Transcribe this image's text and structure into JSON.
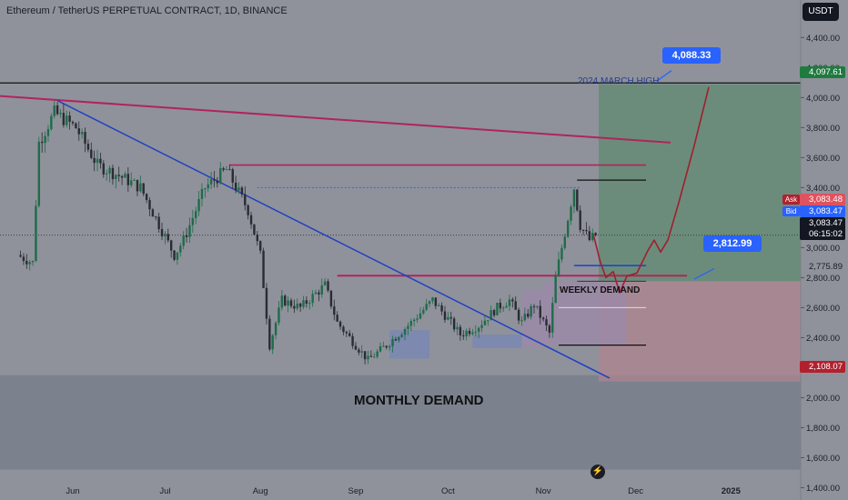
{
  "header": {
    "symbol_title": "Ethereum / TetherUS PERPETUAL CONTRACT, 1D, BINANCE",
    "currency": "USDT"
  },
  "price_tags": {
    "march_high": "4,097.61",
    "ask_label": "Ask",
    "ask": "3,083.48",
    "bid_label": "Bid",
    "bid": "3,083.47",
    "last": "3,083.47",
    "countdown": "06:15:02",
    "level_mid": "2,775.89",
    "stop": "2,108.07"
  },
  "callouts": {
    "target": "4,088.33",
    "level": "2,812.99"
  },
  "annotations": {
    "march_high": "2024 MARCH HIGH",
    "weekly_demand": "WEEKLY DEMAND",
    "monthly_demand": "MONTHLY DEMAND"
  },
  "colors": {
    "background": "#8f929b",
    "up_candle": "#1f6b4a",
    "down_candle": "#2a2c33",
    "trendline_blue": "#1f3fc4",
    "trendline_magenta": "#b0245c",
    "target_zone": "#5f8a70",
    "stop_zone": "#b0858f",
    "demand_zone": "#6f7685",
    "tag_green": "#1f7a3f",
    "tag_red": "#b2202e",
    "tag_blue": "#2962ff"
  },
  "chart_data": {
    "type": "candlestick",
    "title": "Ethereum / TetherUS PERPETUAL CONTRACT, 1D, BINANCE",
    "x_tick_labels": [
      "Jun",
      "Jul",
      "Aug",
      "Sep",
      "Oct",
      "Nov",
      "Dec",
      "2025"
    ],
    "y_tick_labels": [
      "4,400.00",
      "4,200.00",
      "4,000.00",
      "3,800.00",
      "3,600.00",
      "3,400.00",
      "3,200.00",
      "3,000.00",
      "2,800.00",
      "2,600.00",
      "2,400.00",
      "2,200.00",
      "2,000.00",
      "1,800.00",
      "1,600.00",
      "1,400.00"
    ],
    "y_ticks": [
      4400,
      4200,
      4000,
      3800,
      3600,
      3400,
      3200,
      3000,
      2800,
      2600,
      2400,
      2200,
      2000,
      1800,
      1600,
      1400
    ],
    "ylim": [
      1330,
      4620
    ],
    "y_unit": "USDT",
    "price_points": [
      {
        "date": "2024-05-15",
        "price": 2950
      },
      {
        "date": "2024-05-20",
        "price": 2900
      },
      {
        "date": "2024-05-22",
        "price": 3700
      },
      {
        "date": "2024-05-27",
        "price": 3900
      },
      {
        "date": "2024-06-03",
        "price": 3800
      },
      {
        "date": "2024-06-10",
        "price": 3550
      },
      {
        "date": "2024-06-17",
        "price": 3480
      },
      {
        "date": "2024-06-24",
        "price": 3400
      },
      {
        "date": "2024-07-05",
        "price": 2950
      },
      {
        "date": "2024-07-08",
        "price": 3050
      },
      {
        "date": "2024-07-15",
        "price": 3400
      },
      {
        "date": "2024-07-22",
        "price": 3520
      },
      {
        "date": "2024-07-29",
        "price": 3250
      },
      {
        "date": "2024-08-02",
        "price": 2950
      },
      {
        "date": "2024-08-05",
        "price": 2350
      },
      {
        "date": "2024-08-09",
        "price": 2650
      },
      {
        "date": "2024-08-15",
        "price": 2600
      },
      {
        "date": "2024-08-23",
        "price": 2750
      },
      {
        "date": "2024-08-27",
        "price": 2500
      },
      {
        "date": "2024-09-06",
        "price": 2250
      },
      {
        "date": "2024-09-12",
        "price": 2350
      },
      {
        "date": "2024-09-20",
        "price": 2500
      },
      {
        "date": "2024-09-27",
        "price": 2650
      },
      {
        "date": "2024-10-01",
        "price": 2550
      },
      {
        "date": "2024-10-06",
        "price": 2420
      },
      {
        "date": "2024-10-12",
        "price": 2480
      },
      {
        "date": "2024-10-18",
        "price": 2600
      },
      {
        "date": "2024-10-22",
        "price": 2650
      },
      {
        "date": "2024-10-26",
        "price": 2500
      },
      {
        "date": "2024-10-30",
        "price": 2620
      },
      {
        "date": "2024-11-04",
        "price": 2430
      },
      {
        "date": "2024-11-06",
        "price": 2800
      },
      {
        "date": "2024-11-09",
        "price": 3100
      },
      {
        "date": "2024-11-12",
        "price": 3400
      },
      {
        "date": "2024-11-14",
        "price": 3150
      },
      {
        "date": "2024-11-17",
        "price": 3050
      },
      {
        "date": "2024-11-19",
        "price": 3083
      }
    ],
    "horizontal_levels": [
      4097.61,
      3550,
      3450,
      3400,
      2880,
      2812.99,
      2775.89
    ],
    "target": 4088.33,
    "stop": 2108.07,
    "entry_area": 2775.89
  }
}
